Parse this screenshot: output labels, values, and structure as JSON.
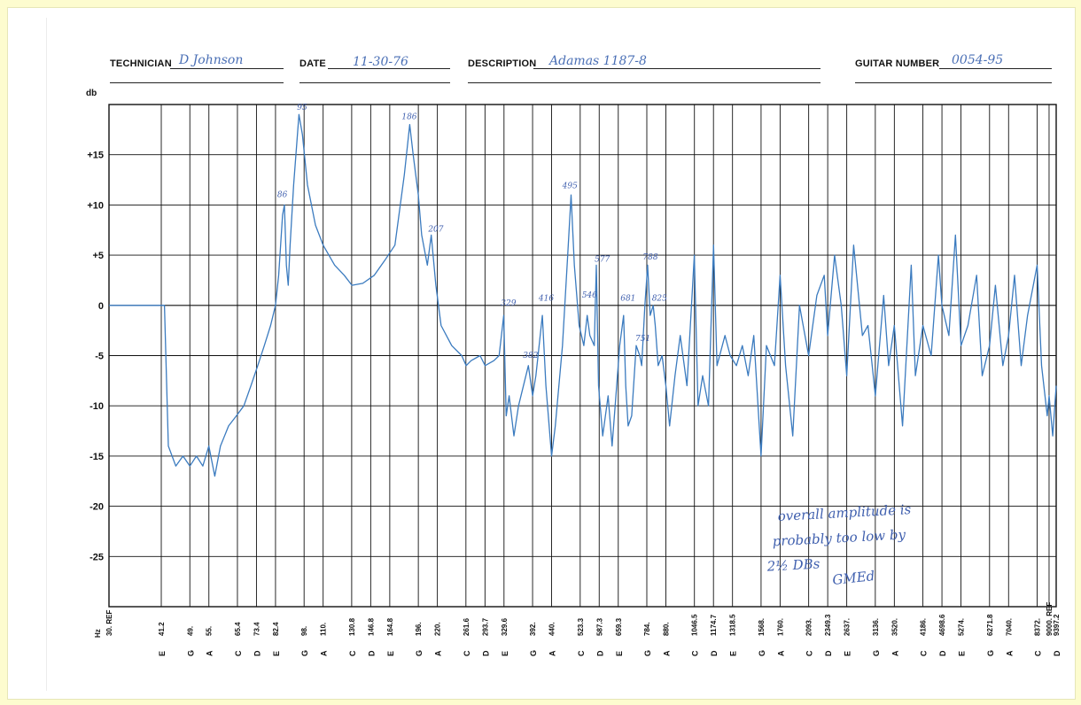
{
  "header": {
    "technician_label": "TECHNICIAN",
    "technician_value": "D Johnson",
    "date_label": "DATE",
    "date_value": "11-30-76",
    "description_label": "DESCRIPTION",
    "description_value": "Adamas 1187-8",
    "guitar_number_label": "GUITAR NUMBER",
    "guitar_number_value": "0054-95"
  },
  "chart_data": {
    "type": "line",
    "title": "",
    "ylabel": "db",
    "xlabel": "Hz",
    "ylim": [
      -30,
      20
    ],
    "y_ticks": [
      "+15",
      "+10",
      "+5",
      "0",
      "-5",
      "-10",
      "-15",
      "-20",
      "-25"
    ],
    "y_tick_values": [
      15,
      10,
      5,
      0,
      -5,
      -10,
      -15,
      -20,
      -25
    ],
    "x_axis_scale": "log",
    "x_ticks": [
      {
        "freq": "30. REF",
        "note": ""
      },
      {
        "freq": "41.2",
        "note": "E"
      },
      {
        "freq": "49.",
        "note": "G"
      },
      {
        "freq": "55.",
        "note": "A"
      },
      {
        "freq": "65.4",
        "note": "C"
      },
      {
        "freq": "73.4",
        "note": "D"
      },
      {
        "freq": "82.4",
        "note": "E"
      },
      {
        "freq": "98.",
        "note": "G"
      },
      {
        "freq": "110.",
        "note": "A"
      },
      {
        "freq": "130.8",
        "note": "C"
      },
      {
        "freq": "146.8",
        "note": "D"
      },
      {
        "freq": "164.8",
        "note": "E"
      },
      {
        "freq": "196.",
        "note": "G"
      },
      {
        "freq": "220.",
        "note": "A"
      },
      {
        "freq": "261.6",
        "note": "C"
      },
      {
        "freq": "293.7",
        "note": "D"
      },
      {
        "freq": "329.6",
        "note": "E"
      },
      {
        "freq": "392.",
        "note": "G"
      },
      {
        "freq": "440.",
        "note": "A"
      },
      {
        "freq": "523.3",
        "note": "C"
      },
      {
        "freq": "587.3",
        "note": "D"
      },
      {
        "freq": "659.3",
        "note": "E"
      },
      {
        "freq": "784.",
        "note": "G"
      },
      {
        "freq": "880.",
        "note": "A"
      },
      {
        "freq": "1046.5",
        "note": "C"
      },
      {
        "freq": "1174.7",
        "note": "D"
      },
      {
        "freq": "1318.5",
        "note": "E"
      },
      {
        "freq": "1568.",
        "note": "G"
      },
      {
        "freq": "1760.",
        "note": "A"
      },
      {
        "freq": "2093.",
        "note": "C"
      },
      {
        "freq": "2349.3",
        "note": "D"
      },
      {
        "freq": "2637.",
        "note": "E"
      },
      {
        "freq": "3136.",
        "note": "G"
      },
      {
        "freq": "3520.",
        "note": "A"
      },
      {
        "freq": "4186.",
        "note": "C"
      },
      {
        "freq": "4698.6",
        "note": "D"
      },
      {
        "freq": "5274.",
        "note": "E"
      },
      {
        "freq": "6271.8",
        "note": "G"
      },
      {
        "freq": "7040.",
        "note": "A"
      },
      {
        "freq": "8372.",
        "note": "C"
      },
      {
        "freq": "9000. REF",
        "note": ""
      },
      {
        "freq": "9397.2",
        "note": "D"
      }
    ],
    "series": [
      {
        "color": "#3b7bbf",
        "points": [
          [
            30,
            0
          ],
          [
            42,
            0
          ],
          [
            43,
            -14
          ],
          [
            45,
            -16
          ],
          [
            47,
            -15
          ],
          [
            49,
            -16
          ],
          [
            51,
            -15
          ],
          [
            53,
            -16
          ],
          [
            55,
            -14
          ],
          [
            57,
            -17
          ],
          [
            59,
            -14
          ],
          [
            62,
            -12
          ],
          [
            65,
            -11
          ],
          [
            68,
            -10
          ],
          [
            71,
            -8
          ],
          [
            74,
            -6
          ],
          [
            77,
            -4
          ],
          [
            80,
            -2
          ],
          [
            82.4,
            0
          ],
          [
            84,
            3
          ],
          [
            86,
            9
          ],
          [
            87,
            10
          ],
          [
            88,
            4
          ],
          [
            89,
            2
          ],
          [
            90,
            6
          ],
          [
            92,
            12
          ],
          [
            95,
            19
          ],
          [
            97,
            17
          ],
          [
            100,
            12
          ],
          [
            105,
            8
          ],
          [
            110,
            6
          ],
          [
            118,
            4
          ],
          [
            125,
            3
          ],
          [
            131,
            2
          ],
          [
            140,
            2.2
          ],
          [
            150,
            3
          ],
          [
            160,
            4.5
          ],
          [
            170,
            6
          ],
          [
            180,
            13
          ],
          [
            186,
            18
          ],
          [
            190,
            15
          ],
          [
            196,
            11
          ],
          [
            200,
            7
          ],
          [
            207,
            4
          ],
          [
            212,
            7
          ],
          [
            218,
            2
          ],
          [
            225,
            -2
          ],
          [
            240,
            -4
          ],
          [
            255,
            -5
          ],
          [
            262,
            -6
          ],
          [
            270,
            -5.5
          ],
          [
            285,
            -5
          ],
          [
            294,
            -6
          ],
          [
            310,
            -5.5
          ],
          [
            320,
            -5
          ],
          [
            329,
            -1
          ],
          [
            334,
            -11
          ],
          [
            340,
            -9
          ],
          [
            350,
            -13
          ],
          [
            360,
            -10
          ],
          [
            382,
            -6
          ],
          [
            392,
            -9
          ],
          [
            400,
            -7
          ],
          [
            416,
            -1
          ],
          [
            425,
            -8
          ],
          [
            440,
            -15
          ],
          [
            450,
            -12
          ],
          [
            470,
            -4
          ],
          [
            485,
            5
          ],
          [
            495,
            11
          ],
          [
            505,
            4
          ],
          [
            520,
            -2
          ],
          [
            535,
            -4
          ],
          [
            546,
            -1
          ],
          [
            555,
            -3
          ],
          [
            570,
            -4
          ],
          [
            577,
            4
          ],
          [
            585,
            -8
          ],
          [
            600,
            -13
          ],
          [
            620,
            -9
          ],
          [
            635,
            -14
          ],
          [
            650,
            -9
          ],
          [
            665,
            -4
          ],
          [
            681,
            -1
          ],
          [
            690,
            -8
          ],
          [
            700,
            -12
          ],
          [
            715,
            -11
          ],
          [
            735,
            -4
          ],
          [
            751,
            -5
          ],
          [
            760,
            -6
          ],
          [
            775,
            0
          ],
          [
            788,
            4
          ],
          [
            800,
            -1
          ],
          [
            815,
            0
          ],
          [
            825,
            -2
          ],
          [
            840,
            -6
          ],
          [
            860,
            -5
          ],
          [
            880,
            -8
          ],
          [
            900,
            -12
          ],
          [
            930,
            -7
          ],
          [
            960,
            -3
          ],
          [
            1000,
            -8
          ],
          [
            1046,
            5
          ],
          [
            1070,
            -10
          ],
          [
            1100,
            -7
          ],
          [
            1140,
            -10
          ],
          [
            1175,
            6
          ],
          [
            1200,
            -6
          ],
          [
            1260,
            -3
          ],
          [
            1300,
            -5
          ],
          [
            1350,
            -6
          ],
          [
            1400,
            -4
          ],
          [
            1450,
            -7
          ],
          [
            1500,
            -3
          ],
          [
            1568,
            -15
          ],
          [
            1620,
            -4
          ],
          [
            1700,
            -6
          ],
          [
            1760,
            3
          ],
          [
            1820,
            -6
          ],
          [
            1900,
            -13
          ],
          [
            1980,
            0
          ],
          [
            2093,
            -5
          ],
          [
            2200,
            1
          ],
          [
            2300,
            3
          ],
          [
            2349,
            -3
          ],
          [
            2450,
            5
          ],
          [
            2550,
            0
          ],
          [
            2637,
            -7
          ],
          [
            2750,
            6
          ],
          [
            2900,
            -3
          ],
          [
            3000,
            -2
          ],
          [
            3136,
            -9
          ],
          [
            3300,
            1
          ],
          [
            3400,
            -6
          ],
          [
            3520,
            -2
          ],
          [
            3700,
            -12
          ],
          [
            3900,
            4
          ],
          [
            4000,
            -7
          ],
          [
            4186,
            -2
          ],
          [
            4400,
            -5
          ],
          [
            4600,
            5
          ],
          [
            4698,
            0
          ],
          [
            4900,
            -3
          ],
          [
            5100,
            7
          ],
          [
            5274,
            -4
          ],
          [
            5500,
            -2
          ],
          [
            5800,
            3
          ],
          [
            6000,
            -7
          ],
          [
            6271,
            -4
          ],
          [
            6500,
            2
          ],
          [
            6800,
            -6
          ],
          [
            7040,
            -3
          ],
          [
            7300,
            3
          ],
          [
            7600,
            -6
          ],
          [
            7900,
            -1
          ],
          [
            8372,
            4
          ],
          [
            8600,
            -6
          ],
          [
            8900,
            -11
          ],
          [
            9000,
            -9
          ],
          [
            9200,
            -13
          ],
          [
            9397,
            -8
          ]
        ]
      }
    ],
    "annotations": [
      {
        "text": "86",
        "x": 86,
        "y": 10.5
      },
      {
        "text": "95",
        "x": 97,
        "y": 19.2
      },
      {
        "text": "186",
        "x": 183,
        "y": 18.3
      },
      {
        "text": "207",
        "x": 215,
        "y": 7.1
      },
      {
        "text": "495",
        "x": 485,
        "y": 11.4
      },
      {
        "text": "329",
        "x": 334,
        "y": -0.3
      },
      {
        "text": "382",
        "x": 382,
        "y": -5.5
      },
      {
        "text": "416",
        "x": 420,
        "y": 0.2
      },
      {
        "text": "546",
        "x": 546,
        "y": 0.5
      },
      {
        "text": "577",
        "x": 590,
        "y": 4.1
      },
      {
        "text": "681",
        "x": 690,
        "y": 0.2
      },
      {
        "text": "751",
        "x": 755,
        "y": -3.8
      },
      {
        "text": "788",
        "x": 790,
        "y": 4.3
      },
      {
        "text": "825",
        "x": 835,
        "y": 0.2
      }
    ],
    "note_lines": [
      "overall amplitude is",
      "probably too low by",
      "2½ DBs"
    ],
    "note_initials": "GMEd",
    "grid": true
  }
}
